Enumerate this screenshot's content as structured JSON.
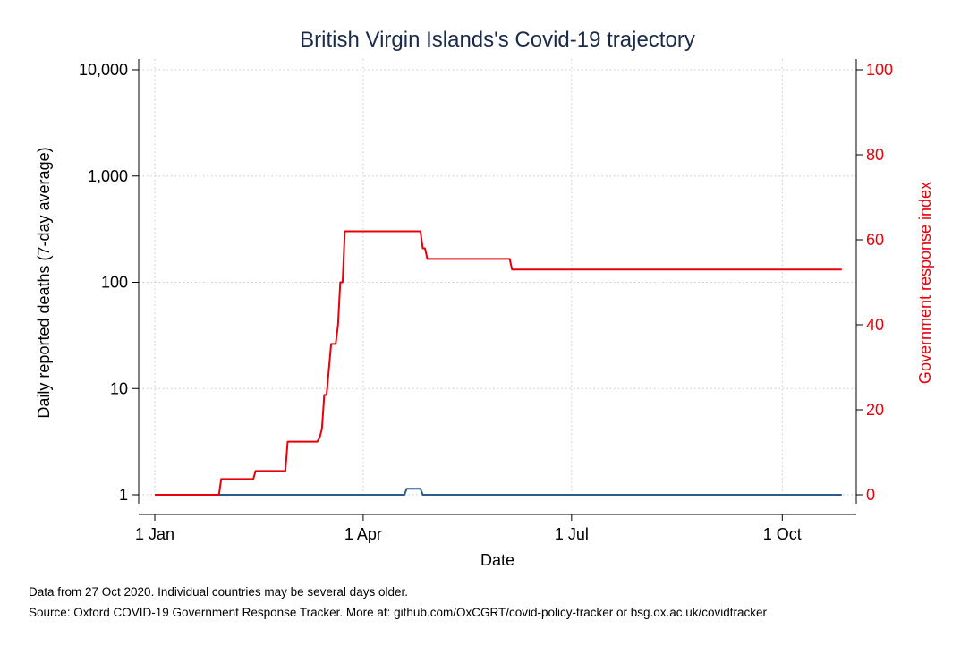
{
  "chart_data": {
    "type": "line",
    "title": "British Virgin Islands's Covid-19 trajectory",
    "xlabel": "Date",
    "ylabel_left": "Daily reported deaths (7-day average)",
    "ylabel_right": "Government response index",
    "x_ticks": [
      {
        "label": "1 Jan",
        "day": 0
      },
      {
        "label": "1 Apr",
        "day": 91
      },
      {
        "label": "1 Jul",
        "day": 182
      },
      {
        "label": "1 Oct",
        "day": 274
      }
    ],
    "xlim": [
      "2020-01-01",
      "2020-10-27"
    ],
    "y_left": {
      "scale": "log",
      "lim": [
        1,
        10000
      ],
      "ticks": [
        {
          "label": "1",
          "value": 1
        },
        {
          "label": "10",
          "value": 10
        },
        {
          "label": "100",
          "value": 100
        },
        {
          "label": "1,000",
          "value": 1000
        },
        {
          "label": "10,000",
          "value": 10000
        }
      ]
    },
    "y_right": {
      "scale": "linear",
      "lim": [
        0,
        100
      ],
      "ticks": [
        {
          "label": "0",
          "value": 0
        },
        {
          "label": "20",
          "value": 20
        },
        {
          "label": "40",
          "value": 40
        },
        {
          "label": "60",
          "value": 60
        },
        {
          "label": "80",
          "value": 80
        },
        {
          "label": "100",
          "value": 100
        }
      ]
    },
    "grid": true,
    "series": [
      {
        "axis": "left",
        "color": "#2a5d8c",
        "step": true,
        "points": [
          [
            0,
            1
          ],
          [
            109,
            1
          ],
          [
            110,
            1.14
          ],
          [
            116,
            1.14
          ],
          [
            117,
            1
          ],
          [
            300,
            1
          ]
        ]
      },
      {
        "axis": "right",
        "color": "#e8000b",
        "step": true,
        "points": [
          [
            0,
            0
          ],
          [
            28,
            0
          ],
          [
            29,
            3.7
          ],
          [
            43,
            3.7
          ],
          [
            44,
            5.6
          ],
          [
            57,
            5.6
          ],
          [
            58,
            12.5
          ],
          [
            71,
            12.5
          ],
          [
            72,
            13.5
          ],
          [
            73,
            15.5
          ],
          [
            74,
            23.5
          ],
          [
            75,
            23.5
          ],
          [
            77,
            35.5
          ],
          [
            79,
            35.5
          ],
          [
            80,
            40
          ],
          [
            81,
            50
          ],
          [
            82,
            50
          ],
          [
            83,
            62
          ],
          [
            116,
            62
          ],
          [
            117,
            58
          ],
          [
            118,
            58
          ],
          [
            119,
            55.5
          ],
          [
            155,
            55.5
          ],
          [
            156,
            53
          ],
          [
            300,
            53
          ]
        ]
      }
    ]
  },
  "footer": {
    "note": "Data from 27 Oct 2020. Individual countries may be several days older.",
    "source": "Source: Oxford COVID-19 Government Response Tracker. More at: github.com/OxCGRT/covid-policy-tracker or bsg.ox.ac.uk/covidtracker"
  }
}
